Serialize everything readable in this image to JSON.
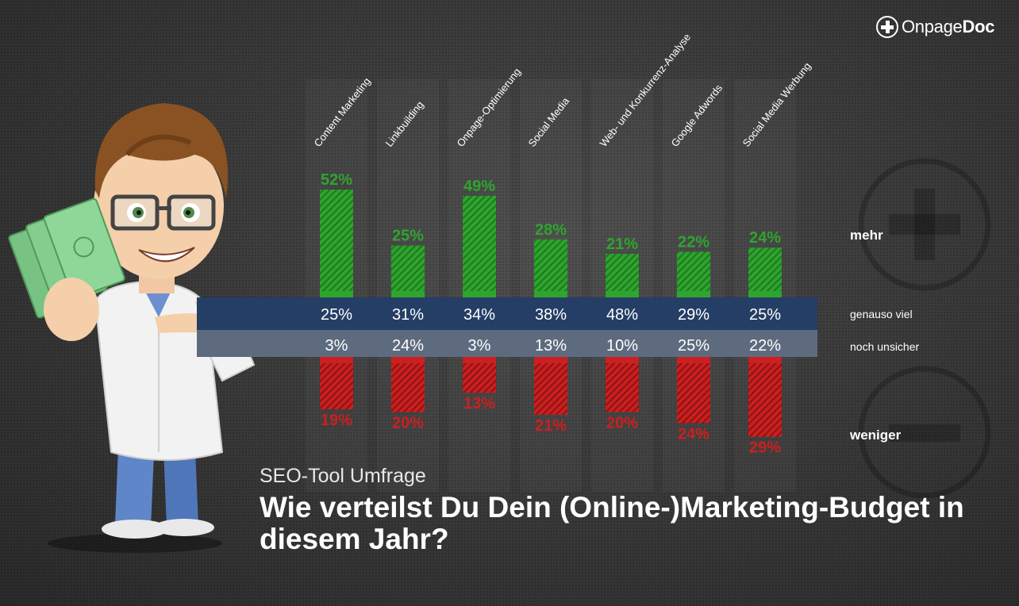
{
  "logo": {
    "text_light": "Onpage",
    "text_bold": "Doc"
  },
  "header": {
    "subtitle": "SEO-Tool Umfrage",
    "title": "Wie verteilst Du Dein (Online-)Marketing-Budget in diesem Jahr?"
  },
  "colors": {
    "more": "#2ea52e",
    "less": "#cc1f1f",
    "same_band": "#253e66",
    "unsure_band": "#5e6b7f"
  },
  "chart_data": {
    "type": "bar",
    "categories": [
      "Content Marketing",
      "Linkbuilding",
      "Onpage-Optimierung",
      "Social Media",
      "Web- und Konkurrenz-Analyse",
      "Google Adwords",
      "Social Media Werbung"
    ],
    "series": [
      {
        "name": "mehr",
        "values": [
          52,
          25,
          49,
          28,
          21,
          22,
          24
        ]
      },
      {
        "name": "genauso viel",
        "values": [
          25,
          31,
          34,
          38,
          48,
          29,
          25
        ]
      },
      {
        "name": "noch unsicher",
        "values": [
          3,
          24,
          3,
          13,
          10,
          25,
          22
        ]
      },
      {
        "name": "weniger",
        "values": [
          19,
          20,
          13,
          21,
          20,
          24,
          29
        ]
      }
    ],
    "unit": "%",
    "labels": {
      "more": "mehr",
      "same": "genauso viel",
      "unsure": "noch unsicher",
      "less": "weniger"
    }
  }
}
